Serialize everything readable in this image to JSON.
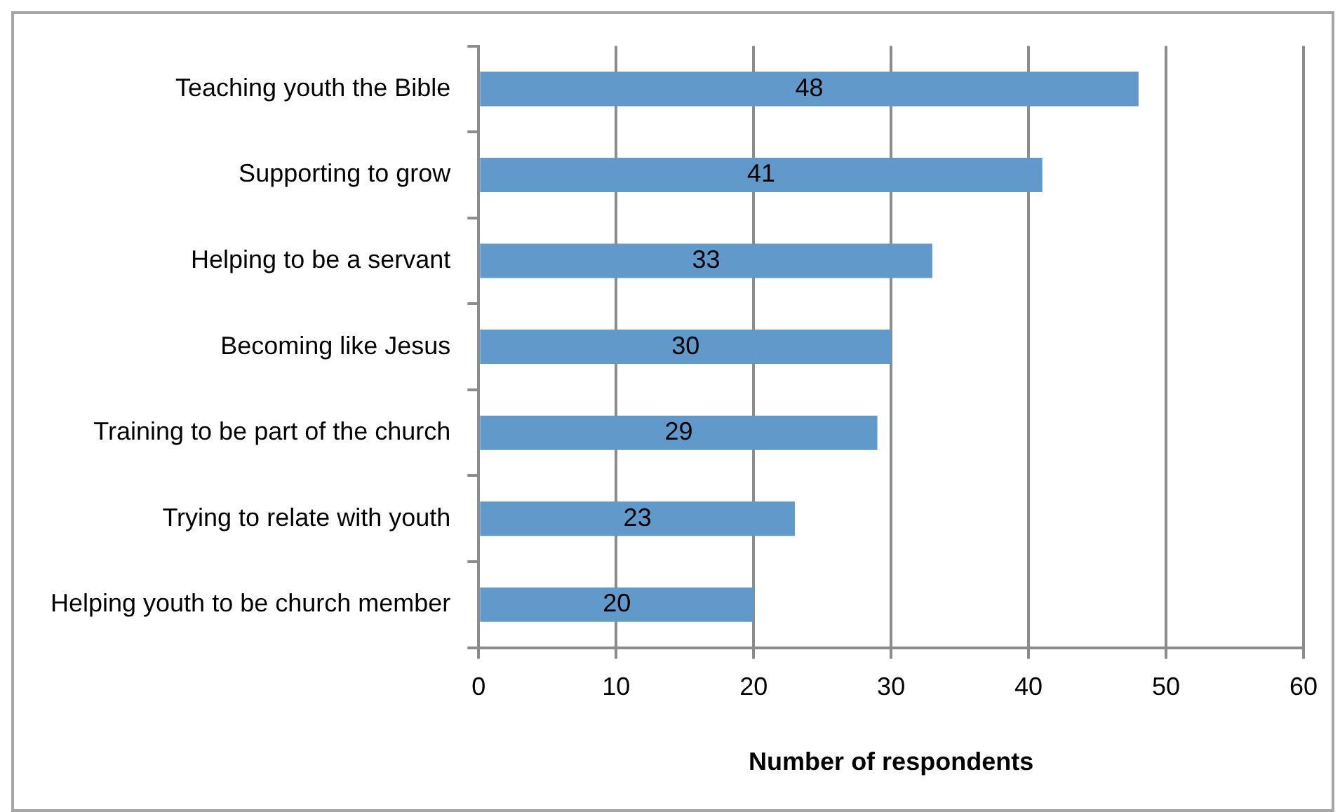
{
  "chart_data": {
    "type": "bar",
    "orientation": "horizontal",
    "xlabel": "Number of respondents",
    "categories": [
      "Teaching youth the Bible",
      "Supporting to grow",
      "Helping to be a servant",
      "Becoming like Jesus",
      "Training to be part of the church",
      "Trying to relate with youth",
      "Helping youth to be church member"
    ],
    "values": [
      48,
      41,
      33,
      30,
      29,
      23,
      20
    ],
    "color": "#6199cb",
    "xlim": [
      0,
      60
    ],
    "xticks": [
      0,
      10,
      20,
      30,
      40,
      50,
      60
    ],
    "grid": "x",
    "data_labels": true,
    "legend": false
  }
}
